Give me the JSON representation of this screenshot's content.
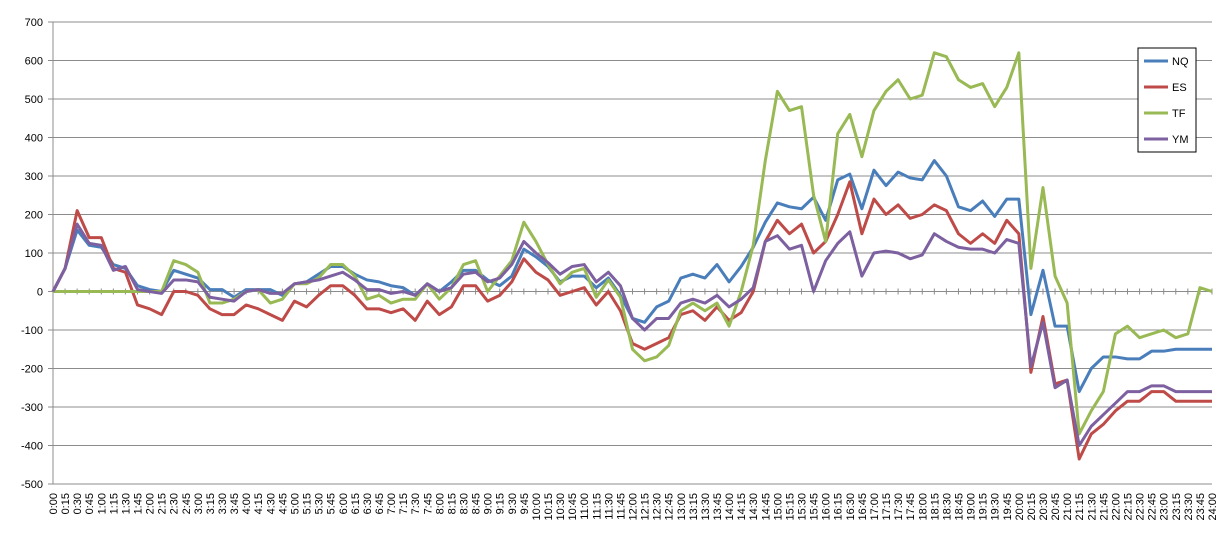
{
  "chart_data": {
    "type": "line",
    "categories": [
      "0:00",
      "0:15",
      "0:30",
      "0:45",
      "1:00",
      "1:15",
      "1:30",
      "1:45",
      "2:00",
      "2:15",
      "2:30",
      "2:45",
      "3:00",
      "3:15",
      "3:30",
      "3:45",
      "4:00",
      "4:15",
      "4:30",
      "4:45",
      "5:00",
      "5:15",
      "5:30",
      "5:45",
      "6:00",
      "6:15",
      "6:30",
      "6:45",
      "7:00",
      "7:15",
      "7:30",
      "7:45",
      "8:00",
      "8:15",
      "8:30",
      "8:45",
      "9:00",
      "9:15",
      "9:30",
      "9:45",
      "10:00",
      "10:15",
      "10:30",
      "10:45",
      "11:00",
      "11:15",
      "11:30",
      "11:45",
      "12:00",
      "12:15",
      "12:30",
      "12:45",
      "13:00",
      "13:15",
      "13:30",
      "13:45",
      "14:00",
      "14:15",
      "14:30",
      "14:45",
      "15:00",
      "15:15",
      "15:30",
      "15:45",
      "16:00",
      "16:15",
      "16:30",
      "16:45",
      "17:00",
      "17:15",
      "17:30",
      "17:45",
      "18:00",
      "18:15",
      "18:30",
      "18:45",
      "19:00",
      "19:15",
      "19:30",
      "19:45",
      "20:00",
      "20:15",
      "20:30",
      "20:45",
      "21:00",
      "21:15",
      "21:30",
      "21:45",
      "22:00",
      "22:15",
      "22:30",
      "22:45",
      "23:00",
      "23:15",
      "23:30",
      "23:45",
      "24:00"
    ],
    "series": [
      {
        "name": "NQ",
        "color": "#4a7ebb",
        "values": [
          0,
          60,
          160,
          120,
          115,
          70,
          60,
          15,
          5,
          0,
          55,
          45,
          35,
          5,
          5,
          -15,
          5,
          5,
          5,
          -10,
          20,
          25,
          45,
          65,
          65,
          45,
          30,
          25,
          15,
          10,
          -10,
          20,
          0,
          25,
          55,
          55,
          30,
          15,
          40,
          110,
          90,
          65,
          25,
          40,
          40,
          10,
          35,
          -10,
          -70,
          -80,
          -40,
          -25,
          35,
          45,
          35,
          70,
          25,
          65,
          115,
          180,
          230,
          220,
          215,
          245,
          185,
          290,
          305,
          215,
          315,
          275,
          310,
          295,
          290,
          340,
          300,
          220,
          210,
          235,
          195,
          240,
          240,
          -60,
          55,
          -90,
          -90,
          -260,
          -200,
          -170,
          -170,
          -175,
          -175,
          -155,
          -155,
          -150,
          -150,
          -150,
          -150
        ]
      },
      {
        "name": "ES",
        "color": "#be4b48",
        "values": [
          0,
          60,
          210,
          140,
          140,
          60,
          50,
          -35,
          -45,
          -60,
          0,
          0,
          -10,
          -45,
          -60,
          -60,
          -35,
          -45,
          -60,
          -75,
          -25,
          -40,
          -10,
          15,
          15,
          -10,
          -45,
          -45,
          -55,
          -45,
          -75,
          -25,
          -60,
          -40,
          15,
          15,
          -25,
          -10,
          25,
          85,
          50,
          30,
          -10,
          0,
          10,
          -35,
          0,
          -50,
          -135,
          -150,
          -135,
          -120,
          -60,
          -50,
          -75,
          -40,
          -75,
          -55,
          0,
          130,
          185,
          150,
          175,
          100,
          130,
          200,
          285,
          150,
          240,
          200,
          225,
          190,
          200,
          225,
          210,
          150,
          125,
          150,
          125,
          185,
          150,
          -210,
          -65,
          -240,
          -230,
          -435,
          -370,
          -345,
          -310,
          -285,
          -285,
          -260,
          -260,
          -285,
          -285,
          -285,
          -285
        ]
      },
      {
        "name": "TF",
        "color": "#98b954",
        "values": [
          0,
          0,
          0,
          0,
          0,
          0,
          0,
          0,
          0,
          0,
          80,
          70,
          50,
          -30,
          -30,
          -20,
          0,
          5,
          -30,
          -20,
          20,
          20,
          35,
          70,
          70,
          40,
          -20,
          -10,
          -30,
          -20,
          -20,
          20,
          -20,
          10,
          70,
          80,
          0,
          40,
          80,
          180,
          130,
          70,
          20,
          50,
          60,
          -15,
          30,
          -15,
          -150,
          -180,
          -170,
          -140,
          -50,
          -30,
          -50,
          -30,
          -90,
          0,
          120,
          340,
          520,
          470,
          480,
          250,
          130,
          410,
          460,
          350,
          470,
          520,
          550,
          500,
          510,
          620,
          610,
          550,
          530,
          540,
          480,
          530,
          620,
          60,
          270,
          40,
          -30,
          -370,
          -310,
          -260,
          -110,
          -90,
          -120,
          -110,
          -100,
          -120,
          -110,
          10,
          0
        ]
      },
      {
        "name": "YM",
        "color": "#7d60a0",
        "values": [
          0,
          60,
          175,
          125,
          120,
          55,
          65,
          5,
          0,
          -5,
          30,
          30,
          25,
          -15,
          -20,
          -25,
          0,
          5,
          -5,
          -5,
          20,
          25,
          30,
          40,
          50,
          30,
          5,
          5,
          -5,
          0,
          -10,
          20,
          0,
          10,
          45,
          50,
          25,
          35,
          70,
          130,
          100,
          75,
          45,
          65,
          70,
          25,
          50,
          15,
          -70,
          -100,
          -70,
          -70,
          -30,
          -20,
          -30,
          -10,
          -40,
          -20,
          10,
          130,
          145,
          110,
          120,
          0,
          80,
          125,
          155,
          40,
          100,
          105,
          100,
          85,
          95,
          150,
          130,
          115,
          110,
          110,
          100,
          135,
          125,
          -195,
          -80,
          -250,
          -230,
          -400,
          -350,
          -320,
          -290,
          -260,
          -260,
          -245,
          -245,
          -260,
          -260,
          -260,
          -260
        ]
      }
    ],
    "ylim": [
      -500,
      700
    ],
    "yticks": [
      -500,
      -400,
      -300,
      -200,
      -100,
      0,
      100,
      200,
      300,
      400,
      500,
      600,
      700
    ],
    "grid": true,
    "legend": "right"
  }
}
